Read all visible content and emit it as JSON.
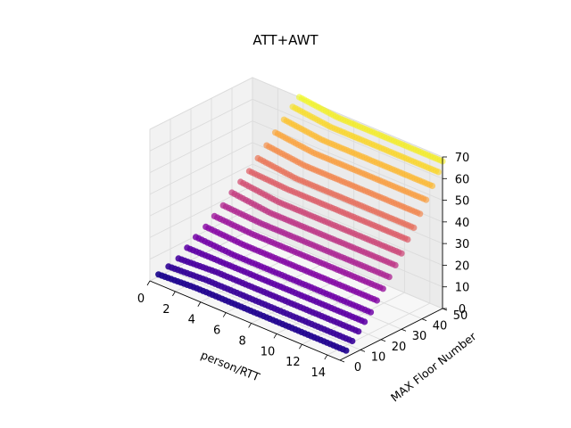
{
  "chart_data": {
    "type": "scatter3d",
    "title": "ATT+AWT",
    "xlabel": "person/RTT",
    "ylabel": "MAX Floor Number",
    "zlabel": "",
    "xlim": [
      0,
      15
    ],
    "ylim": [
      0,
      50
    ],
    "zlim": [
      0,
      70
    ],
    "xticks": [
      "0",
      "2",
      "4",
      "6",
      "8",
      "10",
      "12",
      "14"
    ],
    "yticks": [
      "0",
      "10",
      "20",
      "30",
      "40",
      "50"
    ],
    "zticks": [
      "0",
      "10",
      "20",
      "30",
      "40",
      "50",
      "60",
      "70"
    ],
    "colormap": "plasma",
    "series": [
      {
        "y": 3,
        "x_range": [
          0.2,
          15
        ],
        "z_start": 2,
        "z_end": 3
      },
      {
        "y": 6,
        "x_range": [
          0.5,
          15
        ],
        "z_start": 5,
        "z_end": 6
      },
      {
        "y": 9,
        "x_range": [
          0.8,
          15
        ],
        "z_start": 8,
        "z_end": 9
      },
      {
        "y": 12,
        "x_range": [
          1.0,
          15
        ],
        "z_start": 12,
        "z_end": 12
      },
      {
        "y": 15,
        "x_range": [
          1.2,
          15
        ],
        "z_start": 16,
        "z_end": 15
      },
      {
        "y": 18,
        "x_range": [
          1.5,
          15
        ],
        "z_start": 20,
        "z_end": 19
      },
      {
        "y": 21,
        "x_range": [
          1.7,
          15
        ],
        "z_start": 24,
        "z_end": 23
      },
      {
        "y": 24,
        "x_range": [
          1.9,
          15
        ],
        "z_start": 28,
        "z_end": 27
      },
      {
        "y": 27,
        "x_range": [
          2.1,
          15
        ],
        "z_start": 33,
        "z_end": 31
      },
      {
        "y": 30,
        "x_range": [
          2.3,
          15
        ],
        "z_start": 37,
        "z_end": 35
      },
      {
        "y": 33,
        "x_range": [
          2.5,
          15
        ],
        "z_start": 41,
        "z_end": 40
      },
      {
        "y": 36,
        "x_range": [
          2.7,
          15
        ],
        "z_start": 46,
        "z_end": 44
      },
      {
        "y": 39,
        "x_range": [
          2.9,
          15
        ],
        "z_start": 51,
        "z_end": 49
      },
      {
        "y": 42,
        "x_range": [
          3.1,
          15
        ],
        "z_start": 56,
        "z_end": 54
      },
      {
        "y": 45,
        "x_range": [
          3.3,
          15
        ],
        "z_start": 61,
        "z_end": 59
      },
      {
        "y": 48,
        "x_range": [
          3.5,
          15
        ],
        "z_start": 66,
        "z_end": 64
      },
      {
        "y": 50,
        "x_range": [
          3.7,
          15
        ],
        "z_start": 70,
        "z_end": 68
      }
    ]
  }
}
